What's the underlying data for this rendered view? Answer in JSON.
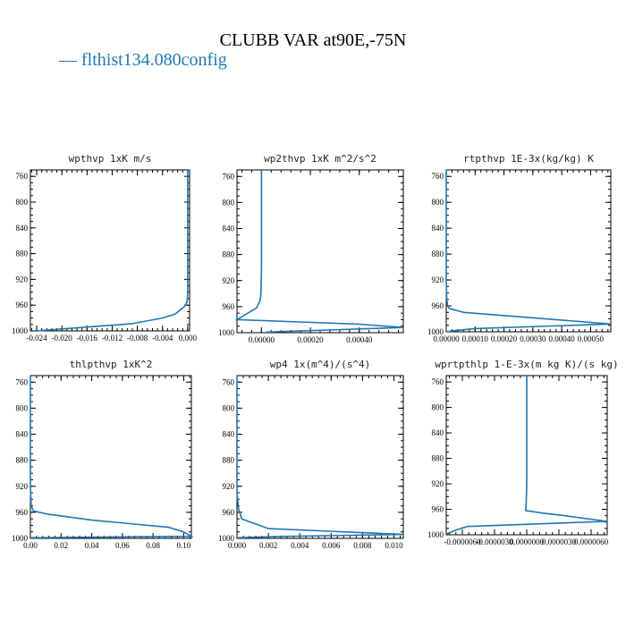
{
  "figure": {
    "title": "CLUBB VAR at90E,-75N",
    "legend": "— flthist134.080config",
    "line_color": "#1f77b4"
  },
  "chart_data": [
    {
      "type": "line",
      "title": "wpthvp  1xK m/s",
      "xlim": [
        -0.025,
        0.0003
      ],
      "x_ticks": [
        -0.024,
        -0.02,
        -0.016,
        -0.012,
        -0.008,
        -0.004,
        0.0
      ],
      "x_tick_labels": [
        "-0.024",
        "-0.020",
        "-0.016",
        "-0.012",
        "-0.008",
        "-0.004",
        "0.000"
      ],
      "ylim": [
        1000,
        750
      ],
      "y_ticks": [
        760,
        800,
        840,
        880,
        920,
        960,
        1000
      ],
      "y_tick_labels": [
        "760",
        "800",
        "840",
        "880",
        "920",
        "960",
        "1000"
      ],
      "series": [
        {
          "x": [
            0.0,
            0.0,
            0.0,
            -0.0001,
            -0.0005,
            -0.002,
            -0.004,
            -0.009,
            -0.016,
            -0.024
          ],
          "y": [
            750,
            900,
            940,
            955,
            962,
            974,
            980,
            989,
            994,
            1000
          ]
        }
      ]
    },
    {
      "type": "line",
      "title": "wp2thvp  1xK m^2/s^2",
      "xlim": [
        -0.0001,
        0.00058
      ],
      "x_ticks": [
        0.0,
        0.0002,
        0.0004
      ],
      "x_tick_labels": [
        "0.00000",
        "0.00020",
        "0.00040"
      ],
      "ylim": [
        1000,
        750
      ],
      "y_ticks": [
        760,
        800,
        840,
        880,
        920,
        960,
        1000
      ],
      "y_tick_labels": [
        "760",
        "800",
        "840",
        "880",
        "920",
        "960",
        "1000"
      ],
      "series": [
        {
          "x": [
            0.0,
            0.0,
            -2e-06,
            -5e-06,
            -2e-05,
            -0.0001,
            0.0004,
            0.00058,
            2e-05
          ],
          "y": [
            750,
            900,
            940,
            950,
            962,
            980,
            987,
            992,
            999
          ]
        }
      ]
    },
    {
      "type": "line",
      "title": "rtpthvp  1E-3x(kg/kg) K",
      "xlim": [
        0.0,
        0.00057
      ],
      "x_ticks": [
        0.0,
        0.0001,
        0.0002,
        0.0003,
        0.0004,
        0.0005
      ],
      "x_tick_labels": [
        "0.00000",
        "0.00010",
        "0.00020",
        "0.00030",
        "0.00040",
        "0.00050"
      ],
      "ylim": [
        1000,
        750
      ],
      "y_ticks": [
        760,
        800,
        840,
        880,
        920,
        960,
        1000
      ],
      "y_tick_labels": [
        "760",
        "800",
        "840",
        "880",
        "920",
        "960",
        "1000"
      ],
      "series": [
        {
          "x": [
            0.0,
            0.0,
            2e-06,
            5e-06,
            1e-05,
            6e-05,
            0.00057,
            0.0001,
            1e-05
          ],
          "y": [
            750,
            920,
            950,
            960,
            964,
            970,
            988,
            995,
            999
          ]
        }
      ]
    },
    {
      "type": "line",
      "title": "thlpthvp  1xK^2",
      "xlim": [
        0.0,
        0.105
      ],
      "x_ticks": [
        0.0,
        0.02,
        0.04,
        0.06,
        0.08,
        0.1
      ],
      "x_tick_labels": [
        "0.00",
        "0.02",
        "0.04",
        "0.06",
        "0.08",
        "0.10"
      ],
      "ylim": [
        1000,
        750
      ],
      "y_ticks": [
        760,
        800,
        840,
        880,
        920,
        960,
        1000
      ],
      "y_tick_labels": [
        "760",
        "800",
        "840",
        "880",
        "920",
        "960",
        "1000"
      ],
      "series": [
        {
          "x": [
            0.0,
            0.0,
            0.0005,
            0.002,
            0.012,
            0.04,
            0.09,
            0.1,
            0.105,
            0.05,
            0.0
          ],
          "y": [
            750,
            920,
            950,
            958,
            963,
            972,
            983,
            990,
            997,
            998,
            999
          ]
        }
      ]
    },
    {
      "type": "line",
      "title": "wp4  1x(m^4)/(s^4)",
      "xlim": [
        0.0,
        0.0106
      ],
      "x_ticks": [
        0.0,
        0.002,
        0.004,
        0.006,
        0.008,
        0.01
      ],
      "x_tick_labels": [
        "0.000",
        "0.002",
        "0.004",
        "0.006",
        "0.008",
        "0.010"
      ],
      "ylim": [
        1000,
        750
      ],
      "y_ticks": [
        760,
        800,
        840,
        880,
        920,
        960,
        1000
      ],
      "y_tick_labels": [
        "760",
        "800",
        "840",
        "880",
        "920",
        "960",
        "1000"
      ],
      "series": [
        {
          "x": [
            0.0,
            0.0,
            0.0001,
            0.0003,
            0.002,
            0.0106,
            0.003,
            0.0
          ],
          "y": [
            750,
            930,
            955,
            970,
            985,
            994,
            997,
            999
          ]
        }
      ]
    },
    {
      "type": "line",
      "title": "wprtpthlp  1-E-3x(m kg K)/(s kg)",
      "xlim": [
        -7.5e-06,
        7.5e-06
      ],
      "x_ticks": [
        -6e-06,
        -3e-06,
        0.0,
        3e-06,
        6e-06
      ],
      "x_tick_labels": [
        "-0.0000060",
        "-0.0000030",
        "0.0000000",
        "0.0000030",
        "0.0000060"
      ],
      "ylim": [
        1000,
        750
      ],
      "y_ticks": [
        760,
        800,
        840,
        880,
        920,
        960,
        1000
      ],
      "y_tick_labels": [
        "760",
        "800",
        "840",
        "880",
        "920",
        "960",
        "1000"
      ],
      "series": [
        {
          "x": [
            0.0,
            0.0,
            -5e-08,
            -1e-07,
            1.5e-06,
            3.5e-06,
            7.5e-06,
            -5.5e-06,
            -6.5e-06,
            -7.5e-06
          ],
          "y": [
            750,
            920,
            950,
            962,
            966,
            970,
            979,
            987,
            992,
            999
          ]
        }
      ]
    }
  ]
}
